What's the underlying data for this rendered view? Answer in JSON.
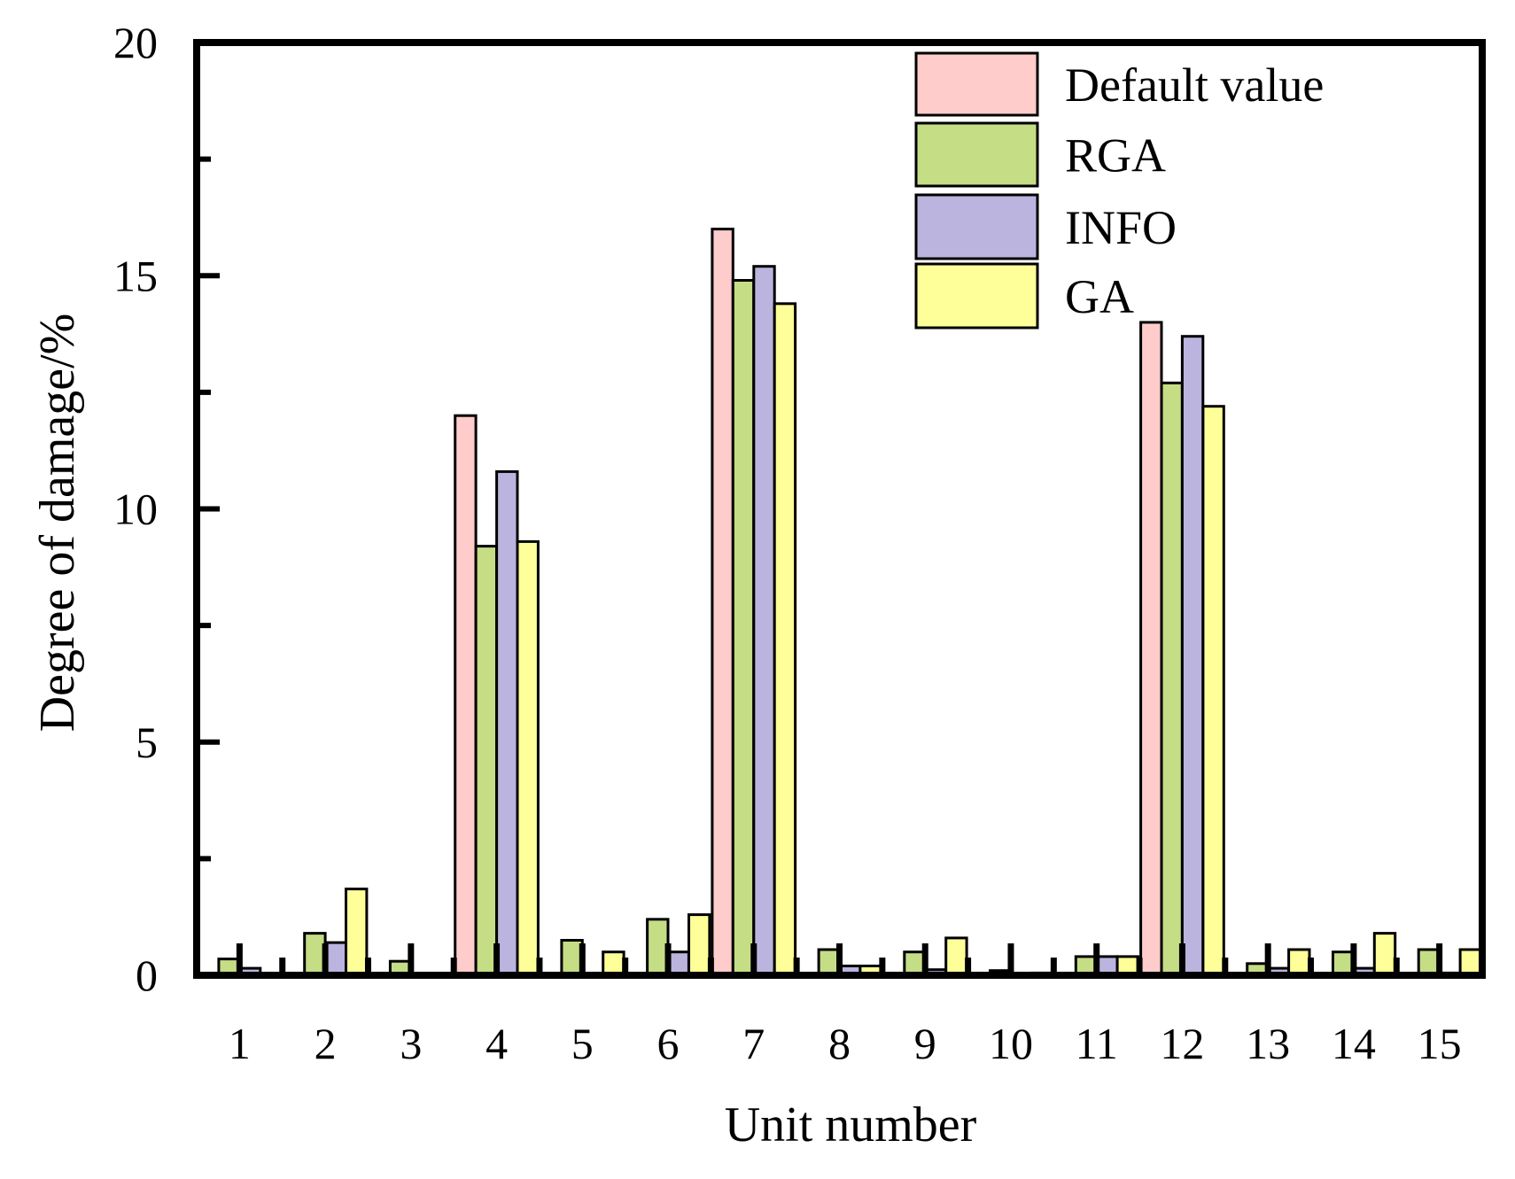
{
  "chart_data": {
    "type": "bar",
    "title": "",
    "xlabel": "Unit number",
    "ylabel": "Degree of damage/%",
    "ylim": [
      0,
      20
    ],
    "yticks": [
      0,
      5,
      10,
      15,
      20
    ],
    "yminor_ticks": [
      2.5,
      7.5,
      12.5,
      17.5
    ],
    "grid": false,
    "legend_position": "upper right",
    "categories": [
      "1",
      "2",
      "3",
      "4",
      "5",
      "6",
      "7",
      "8",
      "9",
      "10",
      "11",
      "12",
      "13",
      "14",
      "15"
    ],
    "series": [
      {
        "name": "Default value",
        "color": "#FFCCCC",
        "values": [
          0,
          0,
          0,
          12.0,
          0,
          0,
          16.0,
          0,
          0,
          0,
          0,
          14.0,
          0,
          0,
          0
        ]
      },
      {
        "name": "RGA",
        "color": "#C5DD85",
        "values": [
          0.35,
          0.9,
          0.3,
          9.2,
          0.75,
          1.2,
          14.9,
          0.55,
          0.5,
          0.1,
          0.4,
          12.7,
          0.25,
          0.5,
          0.55
        ]
      },
      {
        "name": "INFO",
        "color": "#BBB4DE",
        "values": [
          0.15,
          0.7,
          0,
          10.8,
          0,
          0.5,
          15.2,
          0.2,
          0.12,
          0.03,
          0.4,
          13.7,
          0.15,
          0.15,
          0.05
        ]
      },
      {
        "name": "GA",
        "color": "#FFFF99",
        "values": [
          0,
          1.85,
          0,
          9.3,
          0.5,
          1.3,
          14.4,
          0.2,
          0.8,
          0.05,
          0.4,
          12.2,
          0.55,
          0.9,
          0.55
        ]
      }
    ]
  }
}
